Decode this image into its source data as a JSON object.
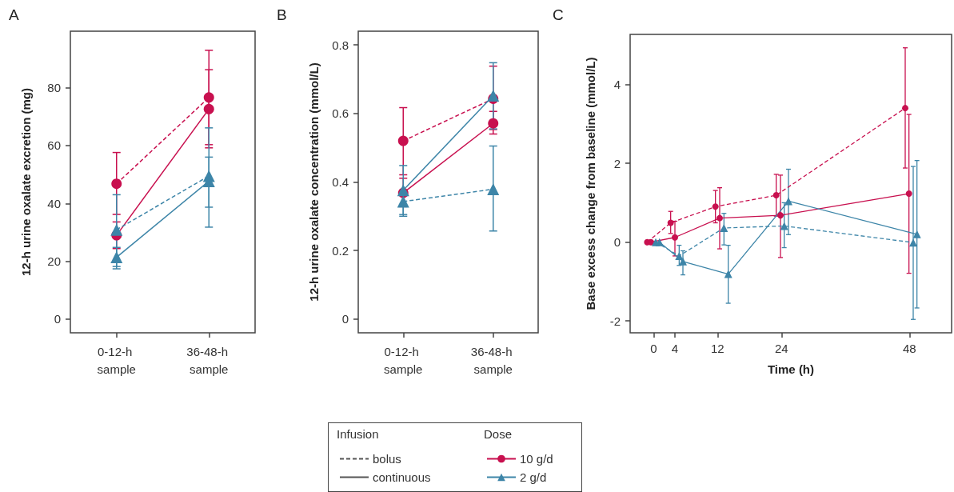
{
  "chart_data": [
    {
      "type": "line",
      "title": "A",
      "ylabel": "12-h urine oxalate excretion (mg)",
      "categories": [
        "0-12-h sample",
        "36-48-h sample"
      ],
      "ylim": [
        -4.7,
        99.5
      ],
      "yticks": [
        0,
        20,
        40,
        60,
        80
      ],
      "grid": false,
      "series": [
        {
          "color": "#c8104f",
          "line_style": "dashed",
          "marker": "circle",
          "values": [
            46.8,
            76.6
          ],
          "errors": [
            [
              36.2,
              57.6
            ],
            [
              60.3,
              92.9
            ]
          ]
        },
        {
          "color": "#c8104f",
          "line_style": "solid",
          "marker": "circle",
          "values": [
            29.0,
            72.6
          ],
          "errors": [
            [
              24.4,
              33.6
            ],
            [
              59.2,
              86.2
            ]
          ]
        },
        {
          "color": "#3d85a8",
          "line_style": "dashed",
          "marker": "triangle",
          "values": [
            30.9,
            49.5
          ],
          "errors": [
            [
              18.2,
              43.0
            ],
            [
              31.8,
              66.1
            ]
          ]
        },
        {
          "color": "#3d85a8",
          "line_style": "solid",
          "marker": "triangle",
          "values": [
            21.4,
            47.7
          ],
          "errors": [
            [
              17.4,
              24.8
            ],
            [
              38.7,
              56.0
            ]
          ]
        }
      ]
    },
    {
      "type": "line",
      "title": "B",
      "ylabel": "12-h urine oxalate concentration (mmol/L)",
      "categories": [
        "0-12-h sample",
        "36-48-h sample"
      ],
      "ylim": [
        -0.04,
        0.84
      ],
      "yticks": [
        0,
        0.2,
        0.4,
        0.6,
        0.8
      ],
      "grid": false,
      "series": [
        {
          "color": "#c8104f",
          "line_style": "dashed",
          "marker": "circle",
          "values": [
            0.52,
            0.643
          ],
          "errors": [
            [
              0.421,
              0.617
            ],
            [
              0.553,
              0.738
            ]
          ]
        },
        {
          "color": "#c8104f",
          "line_style": "solid",
          "marker": "circle",
          "values": [
            0.368,
            0.571
          ],
          "errors": [
            [
              0.328,
              0.411
            ],
            [
              0.54,
              0.606
            ]
          ]
        },
        {
          "color": "#3d85a8",
          "line_style": "dashed",
          "marker": "triangle",
          "values": [
            0.343,
            0.379
          ],
          "errors": [
            [
              0.305,
              0.375
            ],
            [
              0.257,
              0.505
            ]
          ]
        },
        {
          "color": "#3d85a8",
          "line_style": "solid",
          "marker": "triangle",
          "values": [
            0.376,
            0.652
          ],
          "errors": [
            [
              0.3,
              0.448
            ],
            [
              0.555,
              0.748
            ]
          ]
        }
      ]
    },
    {
      "type": "line",
      "title": "C",
      "xlabel": "Time (h)",
      "ylabel": "Base excess change from baseline (mmol/L)",
      "xlim": [
        -4.4,
        55.9
      ],
      "xticks": [
        0,
        4,
        12,
        24,
        48
      ],
      "ylim": [
        -2.3,
        5.27
      ],
      "yticks": [
        -2,
        0,
        2,
        4
      ],
      "grid": false,
      "series": [
        {
          "color": "#c8104f",
          "line_style": "dashed",
          "marker": "circle",
          "x": [
            -1.2,
            3.2,
            11.6,
            23.0,
            47.2
          ],
          "values": [
            0,
            0.49,
            0.9,
            1.19,
            3.4
          ],
          "errors": [
            null,
            [
              0.22,
              0.78
            ],
            [
              0.49,
              1.31
            ],
            [
              0.66,
              1.72
            ],
            [
              1.88,
              4.93
            ]
          ]
        },
        {
          "color": "#c8104f",
          "line_style": "solid",
          "marker": "circle",
          "x": [
            -0.5,
            4.0,
            12.4,
            23.8,
            47.9
          ],
          "values": [
            0,
            0.12,
            0.61,
            0.68,
            1.23
          ],
          "errors": [
            null,
            [
              -0.35,
              0.53
            ],
            [
              -0.17,
              1.38
            ],
            [
              -0.39,
              1.7
            ],
            [
              -0.79,
              3.24
            ]
          ]
        },
        {
          "color": "#3d85a8",
          "line_style": "dashed",
          "marker": "triangle",
          "x": [
            0.4,
            4.8,
            13.2,
            24.5,
            48.7
          ],
          "values": [
            0,
            -0.35,
            0.36,
            0.41,
            -0.01
          ],
          "errors": [
            null,
            [
              -0.59,
              -0.08
            ],
            [
              -0.07,
              0.73
            ],
            [
              -0.14,
              1.0
            ],
            [
              -1.96,
              1.92
            ]
          ]
        },
        {
          "color": "#3d85a8",
          "line_style": "solid",
          "marker": "triangle",
          "x": [
            1.1,
            5.5,
            14.0,
            25.3,
            49.4
          ],
          "values": [
            0,
            -0.49,
            -0.81,
            1.04,
            0.2
          ],
          "errors": [
            null,
            [
              -0.83,
              -0.22
            ],
            [
              -1.55,
              -0.08
            ],
            [
              0.19,
              1.85
            ],
            [
              -1.67,
              2.07
            ]
          ]
        }
      ]
    },
    {
      "type": "other",
      "annotations": [
        "Infusion",
        "Dose"
      ],
      "series": [
        {
          "name": "bolus",
          "color": "#555555",
          "line_style": "dashed",
          "marker": "none"
        },
        {
          "name": "continuous",
          "color": "#555555",
          "line_style": "solid",
          "marker": "none"
        },
        {
          "name": "10 g/d",
          "color": "#c8104f",
          "line_style": "solid",
          "marker": "circle"
        },
        {
          "name": "2 g/d",
          "color": "#3d85a8",
          "line_style": "solid",
          "marker": "triangle"
        }
      ]
    }
  ]
}
